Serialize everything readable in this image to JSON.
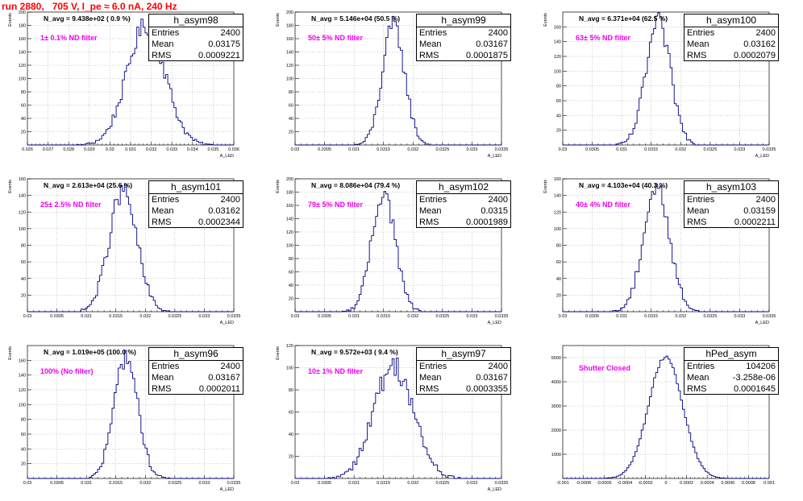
{
  "page": {
    "title": "run 2880,   705 V, I_pe ≈ 6.0 nA, 240 Hz"
  },
  "chart_data": [
    {
      "type": "bar",
      "name": "h_asym98",
      "hist_name": "h_asym98",
      "n_avg": "N_avg = 9.438e+02 ( 0.9 %)",
      "filter": "1± 0.1% ND filter",
      "stats": {
        "entries": "2400",
        "mean": "0.03175",
        "rms": "0.0009221"
      },
      "ylabel": "Events",
      "xlabel": "A_LED",
      "xlim": [
        0.026,
        0.036
      ],
      "ylim": [
        0,
        200
      ],
      "xticks": [
        0.026,
        0.027,
        0.028,
        0.029,
        0.03,
        0.031,
        0.032,
        0.033,
        0.034,
        0.035,
        0.036
      ],
      "xtick_labels": [
        "0.026",
        "0.027",
        "0.028",
        "0.029",
        "0.03",
        "0.031",
        "0.032",
        "0.033",
        "0.034",
        "0.035",
        "0.036"
      ],
      "yticks": [
        20,
        40,
        60,
        80,
        100,
        120,
        140,
        160,
        180,
        200
      ],
      "ytick_labels": [
        "20",
        "40",
        "60",
        "80",
        "100",
        "120",
        "140",
        "160",
        "180",
        "200"
      ],
      "gauss": {
        "mean": 0.03175,
        "sigma": 0.00092,
        "peak": 180
      },
      "n_bins": 100
    },
    {
      "type": "bar",
      "name": "h_asym99",
      "hist_name": "h_asym99",
      "n_avg": "N_avg = 5.146e+04 (50.5 %)",
      "filter": "50± 5% ND filter",
      "stats": {
        "entries": "2400",
        "mean": "0.03167",
        "rms": "0.0001875"
      },
      "ylabel": "Events",
      "xlabel": "A_LED",
      "xlim": [
        0.03,
        0.0335
      ],
      "ylim": [
        0,
        200
      ],
      "xticks": [
        0.03,
        0.0305,
        0.031,
        0.0315,
        0.032,
        0.0325,
        0.033,
        0.0335
      ],
      "xtick_labels": [
        "0.03",
        "0.0305",
        "0.031",
        "0.0315",
        "0.032",
        "0.0325",
        "0.033",
        "0.0335"
      ],
      "yticks": [
        20,
        40,
        60,
        80,
        100,
        120,
        140,
        160,
        180,
        200
      ],
      "ytick_labels": [
        "20",
        "40",
        "60",
        "80",
        "100",
        "120",
        "140",
        "160",
        "180",
        "200"
      ],
      "gauss": {
        "mean": 0.03167,
        "sigma": 0.000188,
        "peak": 180
      },
      "n_bins": 100
    },
    {
      "type": "bar",
      "name": "h_asym100",
      "hist_name": "h_asym100",
      "n_avg": "N_avg = 6.371e+04 (62.5 %)",
      "filter": "63± 5% ND filter",
      "stats": {
        "entries": "2400",
        "mean": "0.03162",
        "rms": "0.0002079"
      },
      "ylabel": "Events",
      "xlabel": "A_LED",
      "xlim": [
        0.03,
        0.0335
      ],
      "ylim": [
        0,
        180
      ],
      "xticks": [
        0.03,
        0.0305,
        0.031,
        0.0315,
        0.032,
        0.0325,
        0.033,
        0.0335
      ],
      "xtick_labels": [
        "0.03",
        "0.0305",
        "0.031",
        "0.0315",
        "0.032",
        "0.0325",
        "0.033",
        "0.0335"
      ],
      "yticks": [
        20,
        40,
        60,
        80,
        100,
        120,
        140,
        160
      ],
      "ytick_labels": [
        "20",
        "40",
        "60",
        "80",
        "100",
        "120",
        "140",
        "160"
      ],
      "gauss": {
        "mean": 0.03162,
        "sigma": 0.000208,
        "peak": 165
      },
      "n_bins": 100
    },
    {
      "type": "bar",
      "name": "h_asym101",
      "hist_name": "h_asym101",
      "n_avg": "N_avg = 2.613e+04 (25.6 %)",
      "filter": "25± 2.5% ND filter",
      "stats": {
        "entries": "2400",
        "mean": "0.03162",
        "rms": "0.0002344"
      },
      "ylabel": "Events",
      "xlabel": "A_LED",
      "xlim": [
        0.03,
        0.0335
      ],
      "ylim": [
        0,
        160
      ],
      "xticks": [
        0.03,
        0.0305,
        0.031,
        0.0315,
        0.032,
        0.0325,
        0.033,
        0.0335
      ],
      "xtick_labels": [
        "0.03",
        "0.0305",
        "0.031",
        "0.0315",
        "0.032",
        "0.0325",
        "0.033",
        "0.0335"
      ],
      "yticks": [
        20,
        40,
        60,
        80,
        100,
        120,
        140,
        160
      ],
      "ytick_labels": [
        "20",
        "40",
        "60",
        "80",
        "100",
        "120",
        "140",
        "160"
      ],
      "gauss": {
        "mean": 0.03162,
        "sigma": 0.000234,
        "peak": 145
      },
      "n_bins": 100
    },
    {
      "type": "bar",
      "name": "h_asym102",
      "hist_name": "h_asym102",
      "n_avg": "N_avg = 8.086e+04 (79.4 %)",
      "filter": "79± 5% ND filter",
      "stats": {
        "entries": "2400",
        "mean": "0.0315",
        "rms": "0.0001989"
      },
      "ylabel": "Events",
      "xlabel": "A_LED",
      "xlim": [
        0.03,
        0.0335
      ],
      "ylim": [
        0,
        200
      ],
      "xticks": [
        0.03,
        0.0305,
        0.031,
        0.0315,
        0.032,
        0.0325,
        0.033,
        0.0335
      ],
      "xtick_labels": [
        "0.03",
        "0.0305",
        "0.031",
        "0.0315",
        "0.032",
        "0.0325",
        "0.033",
        "0.0335"
      ],
      "yticks": [
        20,
        40,
        60,
        80,
        100,
        120,
        140,
        160,
        180,
        200
      ],
      "ytick_labels": [
        "20",
        "40",
        "60",
        "80",
        "100",
        "120",
        "140",
        "160",
        "180",
        "200"
      ],
      "gauss": {
        "mean": 0.0315,
        "sigma": 0.000199,
        "peak": 180
      },
      "n_bins": 100
    },
    {
      "type": "bar",
      "name": "h_asym103",
      "hist_name": "h_asym103",
      "n_avg": "N_avg = 4.103e+04 (40.3 %)",
      "filter": "40± 4% ND filter",
      "stats": {
        "entries": "2400",
        "mean": "0.03159",
        "rms": "0.0002211"
      },
      "ylabel": "Events",
      "xlabel": "A_LED",
      "xlim": [
        0.03,
        0.0335
      ],
      "ylim": [
        0,
        160
      ],
      "xticks": [
        0.03,
        0.0305,
        0.031,
        0.0315,
        0.032,
        0.0325,
        0.033,
        0.0335
      ],
      "xtick_labels": [
        "0.03",
        "0.0305",
        "0.031",
        "0.0315",
        "0.032",
        "0.0325",
        "0.033",
        "0.0335"
      ],
      "yticks": [
        20,
        40,
        60,
        80,
        100,
        120,
        140,
        160
      ],
      "ytick_labels": [
        "20",
        "40",
        "60",
        "80",
        "100",
        "120",
        "140",
        "160"
      ],
      "gauss": {
        "mean": 0.03159,
        "sigma": 0.000221,
        "peak": 150
      },
      "n_bins": 100
    },
    {
      "type": "bar",
      "name": "h_asym96",
      "hist_name": "h_asym96",
      "n_avg": "N_avg = 1.019e+05 (100.0 %)",
      "filter": "100% (No filter)",
      "stats": {
        "entries": "2400",
        "mean": "0.03167",
        "rms": "0.0002011"
      },
      "ylabel": "Events",
      "xlabel": "A_LED",
      "xlim": [
        0.03,
        0.0335
      ],
      "ylim": [
        0,
        180
      ],
      "xticks": [
        0.03,
        0.0305,
        0.031,
        0.0315,
        0.032,
        0.0325,
        0.033,
        0.0335
      ],
      "xtick_labels": [
        "0.03",
        "0.0305",
        "0.031",
        "0.0315",
        "0.032",
        "0.0325",
        "0.033",
        "0.0335"
      ],
      "yticks": [
        20,
        40,
        60,
        80,
        100,
        120,
        140,
        160
      ],
      "ytick_labels": [
        "20",
        "40",
        "60",
        "80",
        "100",
        "120",
        "140",
        "160"
      ],
      "gauss": {
        "mean": 0.03167,
        "sigma": 0.000201,
        "peak": 165
      },
      "n_bins": 100
    },
    {
      "type": "bar",
      "name": "h_asym97",
      "hist_name": "h_asym97",
      "n_avg": "N_avg = 9.572e+03 ( 9.4 %)",
      "filter": "10± 1% ND filter",
      "stats": {
        "entries": "2400",
        "mean": "0.03167",
        "rms": "0.0003355"
      },
      "ylabel": "Events",
      "xlabel": "A_LED",
      "xlim": [
        0.03,
        0.0335
      ],
      "ylim": [
        0,
        120
      ],
      "xticks": [
        0.03,
        0.0305,
        0.031,
        0.0315,
        0.032,
        0.0325,
        0.033,
        0.0335
      ],
      "xtick_labels": [
        "0.03",
        "0.0305",
        "0.031",
        "0.0315",
        "0.032",
        "0.0325",
        "0.033",
        "0.0335"
      ],
      "yticks": [
        20,
        40,
        60,
        80,
        100,
        120
      ],
      "ytick_labels": [
        "20",
        "40",
        "60",
        "80",
        "100",
        "120"
      ],
      "gauss": {
        "mean": 0.03167,
        "sigma": 0.000335,
        "peak": 102
      },
      "n_bins": 100
    },
    {
      "type": "bar",
      "name": "hPed_asym",
      "hist_name": "hPed_asym",
      "n_avg": "",
      "filter": "Shutter Closed",
      "stats": {
        "entries": "104206",
        "mean": "-3.258e-06",
        "rms": "0.0001645"
      },
      "ylabel": "",
      "xlabel": "",
      "xlim": [
        -0.001,
        0.001
      ],
      "ylim": [
        0,
        5500
      ],
      "xticks": [
        -0.001,
        -0.0008,
        -0.0006,
        -0.0004,
        -0.0002,
        0,
        0.0002,
        0.0004,
        0.0006,
        0.0008,
        0.001
      ],
      "xtick_labels": [
        "-0.001",
        "-0.0008",
        "-0.0006",
        "-0.0004",
        "-0.0002",
        "0",
        "0.0002",
        "0.0004",
        "0.0006",
        "0.0008",
        "0.001"
      ],
      "yticks": [
        1000,
        2000,
        3000,
        4000,
        5000
      ],
      "ytick_labels": [
        "1000",
        "2000",
        "3000",
        "4000",
        "5000"
      ],
      "gauss": {
        "mean": -3.3e-06,
        "sigma": 0.000165,
        "peak": 5050
      },
      "n_bins": 100
    }
  ]
}
